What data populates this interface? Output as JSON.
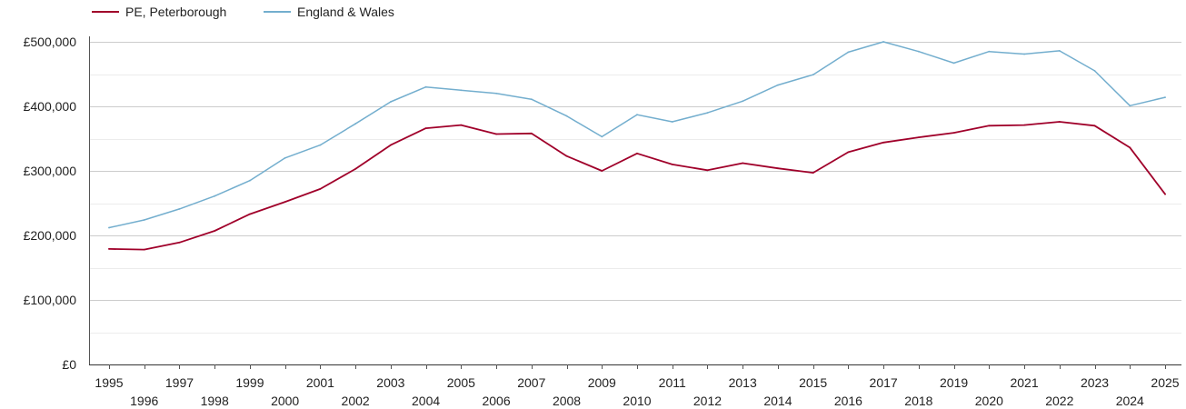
{
  "chart_data": {
    "type": "line",
    "title": "",
    "xlabel": "",
    "ylabel": "",
    "x": [
      1995,
      1996,
      1997,
      1998,
      1999,
      2000,
      2001,
      2002,
      2003,
      2004,
      2005,
      2006,
      2007,
      2008,
      2009,
      2010,
      2011,
      2012,
      2013,
      2014,
      2015,
      2016,
      2017,
      2018,
      2019,
      2020,
      2021,
      2022,
      2023,
      2024,
      2025
    ],
    "xlim": [
      1995,
      2025
    ],
    "ylim": [
      0,
      500000
    ],
    "y_ticks": [
      0,
      100000,
      200000,
      300000,
      400000,
      500000
    ],
    "y_tick_labels": [
      "£0",
      "£100,000",
      "£200,000",
      "£300,000",
      "£400,000",
      "£500,000"
    ],
    "x_tick_labels": [
      "1995",
      "1996",
      "1997",
      "1998",
      "1999",
      "2000",
      "2001",
      "2002",
      "2003",
      "2004",
      "2005",
      "2006",
      "2007",
      "2008",
      "2009",
      "2010",
      "2011",
      "2012",
      "2013",
      "2014",
      "2015",
      "2016",
      "2017",
      "2018",
      "2019",
      "2020",
      "2021",
      "2022",
      "2023",
      "2024",
      "2025"
    ],
    "grid": true,
    "legend_position": "top-left",
    "series": [
      {
        "name": "PE, Peterborough",
        "color": "#a0002a",
        "values": [
          179000,
          178000,
          189000,
          207000,
          233000,
          252000,
          272000,
          303000,
          340000,
          366000,
          371000,
          357000,
          358000,
          323000,
          300000,
          327000,
          310000,
          301000,
          312000,
          304000,
          297000,
          329000,
          344000,
          352000,
          359000,
          370000,
          371000,
          376000,
          370000,
          336000,
          264000
        ]
      },
      {
        "name": "England & Wales",
        "color": "#73aece",
        "values": [
          212000,
          224000,
          241000,
          261000,
          285000,
          320000,
          340000,
          373000,
          407000,
          430000,
          425000,
          420000,
          411000,
          385000,
          353000,
          387000,
          376000,
          390000,
          408000,
          433000,
          449000,
          484000,
          500000,
          485000,
          467000,
          485000,
          481000,
          486000,
          455000,
          401000,
          414000
        ]
      }
    ]
  }
}
